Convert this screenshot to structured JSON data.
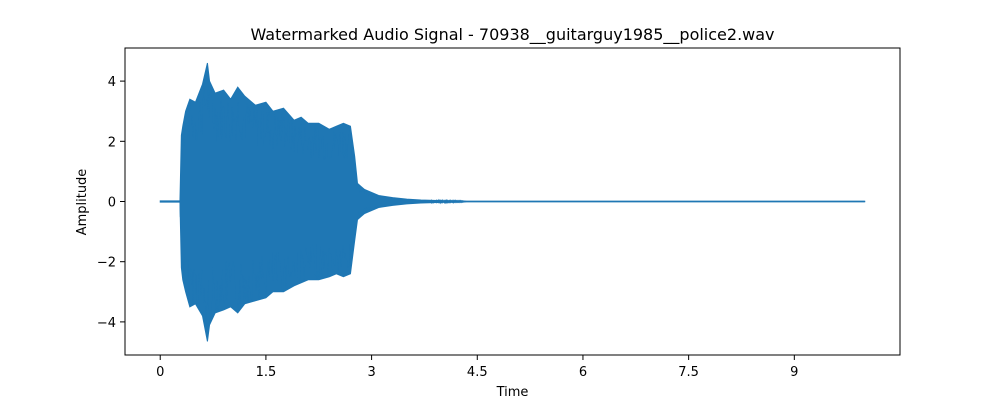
{
  "chart_data": {
    "type": "line",
    "title": "Watermarked Audio Signal - 70938__guitarguy1985__police2.wav",
    "xlabel": "Time",
    "ylabel": "Amplitude",
    "xlim": [
      -0.5,
      10.5
    ],
    "ylim": [
      -5.1,
      5.1
    ],
    "xticks": [
      0,
      1.5,
      3,
      4.5,
      6,
      7.5,
      9
    ],
    "xtick_labels": [
      "0",
      "1.5",
      "3",
      "4.5",
      "6",
      "7.5",
      "9"
    ],
    "yticks": [
      -4,
      -2,
      0,
      2,
      4
    ],
    "ytick_labels": [
      "−4",
      "−2",
      "0",
      "2",
      "4"
    ],
    "grid": false,
    "series": [
      {
        "color": "#1f77b4",
        "envelope": {
          "x": [
            0.0,
            0.28,
            0.3,
            0.32,
            0.36,
            0.42,
            0.5,
            0.6,
            0.67,
            0.7,
            0.78,
            0.9,
            1.0,
            1.1,
            1.2,
            1.35,
            1.5,
            1.6,
            1.75,
            1.9,
            2.0,
            2.1,
            2.25,
            2.4,
            2.5,
            2.6,
            2.7,
            2.76,
            2.8,
            2.85,
            2.9,
            3.0,
            3.1,
            3.3,
            3.5,
            3.7,
            4.0,
            4.3,
            4.35,
            10.0
          ],
          "upper": [
            0.02,
            0.02,
            2.2,
            2.5,
            3.0,
            3.4,
            3.3,
            3.9,
            4.6,
            4.0,
            3.6,
            3.7,
            3.4,
            3.8,
            3.5,
            3.2,
            3.3,
            3.0,
            3.1,
            2.7,
            2.8,
            2.6,
            2.6,
            2.4,
            2.5,
            2.6,
            2.5,
            1.5,
            0.6,
            0.5,
            0.4,
            0.3,
            0.2,
            0.13,
            0.08,
            0.05,
            0.03,
            0.02,
            0.01,
            0.01
          ],
          "lower": [
            -0.02,
            -0.02,
            -2.2,
            -2.6,
            -3.0,
            -3.5,
            -3.4,
            -3.8,
            -4.65,
            -4.1,
            -3.7,
            -3.6,
            -3.5,
            -3.7,
            -3.4,
            -3.3,
            -3.2,
            -3.0,
            -3.0,
            -2.8,
            -2.7,
            -2.6,
            -2.6,
            -2.5,
            -2.4,
            -2.5,
            -2.4,
            -1.3,
            -0.6,
            -0.5,
            -0.4,
            -0.3,
            -0.2,
            -0.13,
            -0.08,
            -0.05,
            -0.03,
            -0.02,
            -0.01,
            -0.01
          ]
        }
      }
    ]
  }
}
